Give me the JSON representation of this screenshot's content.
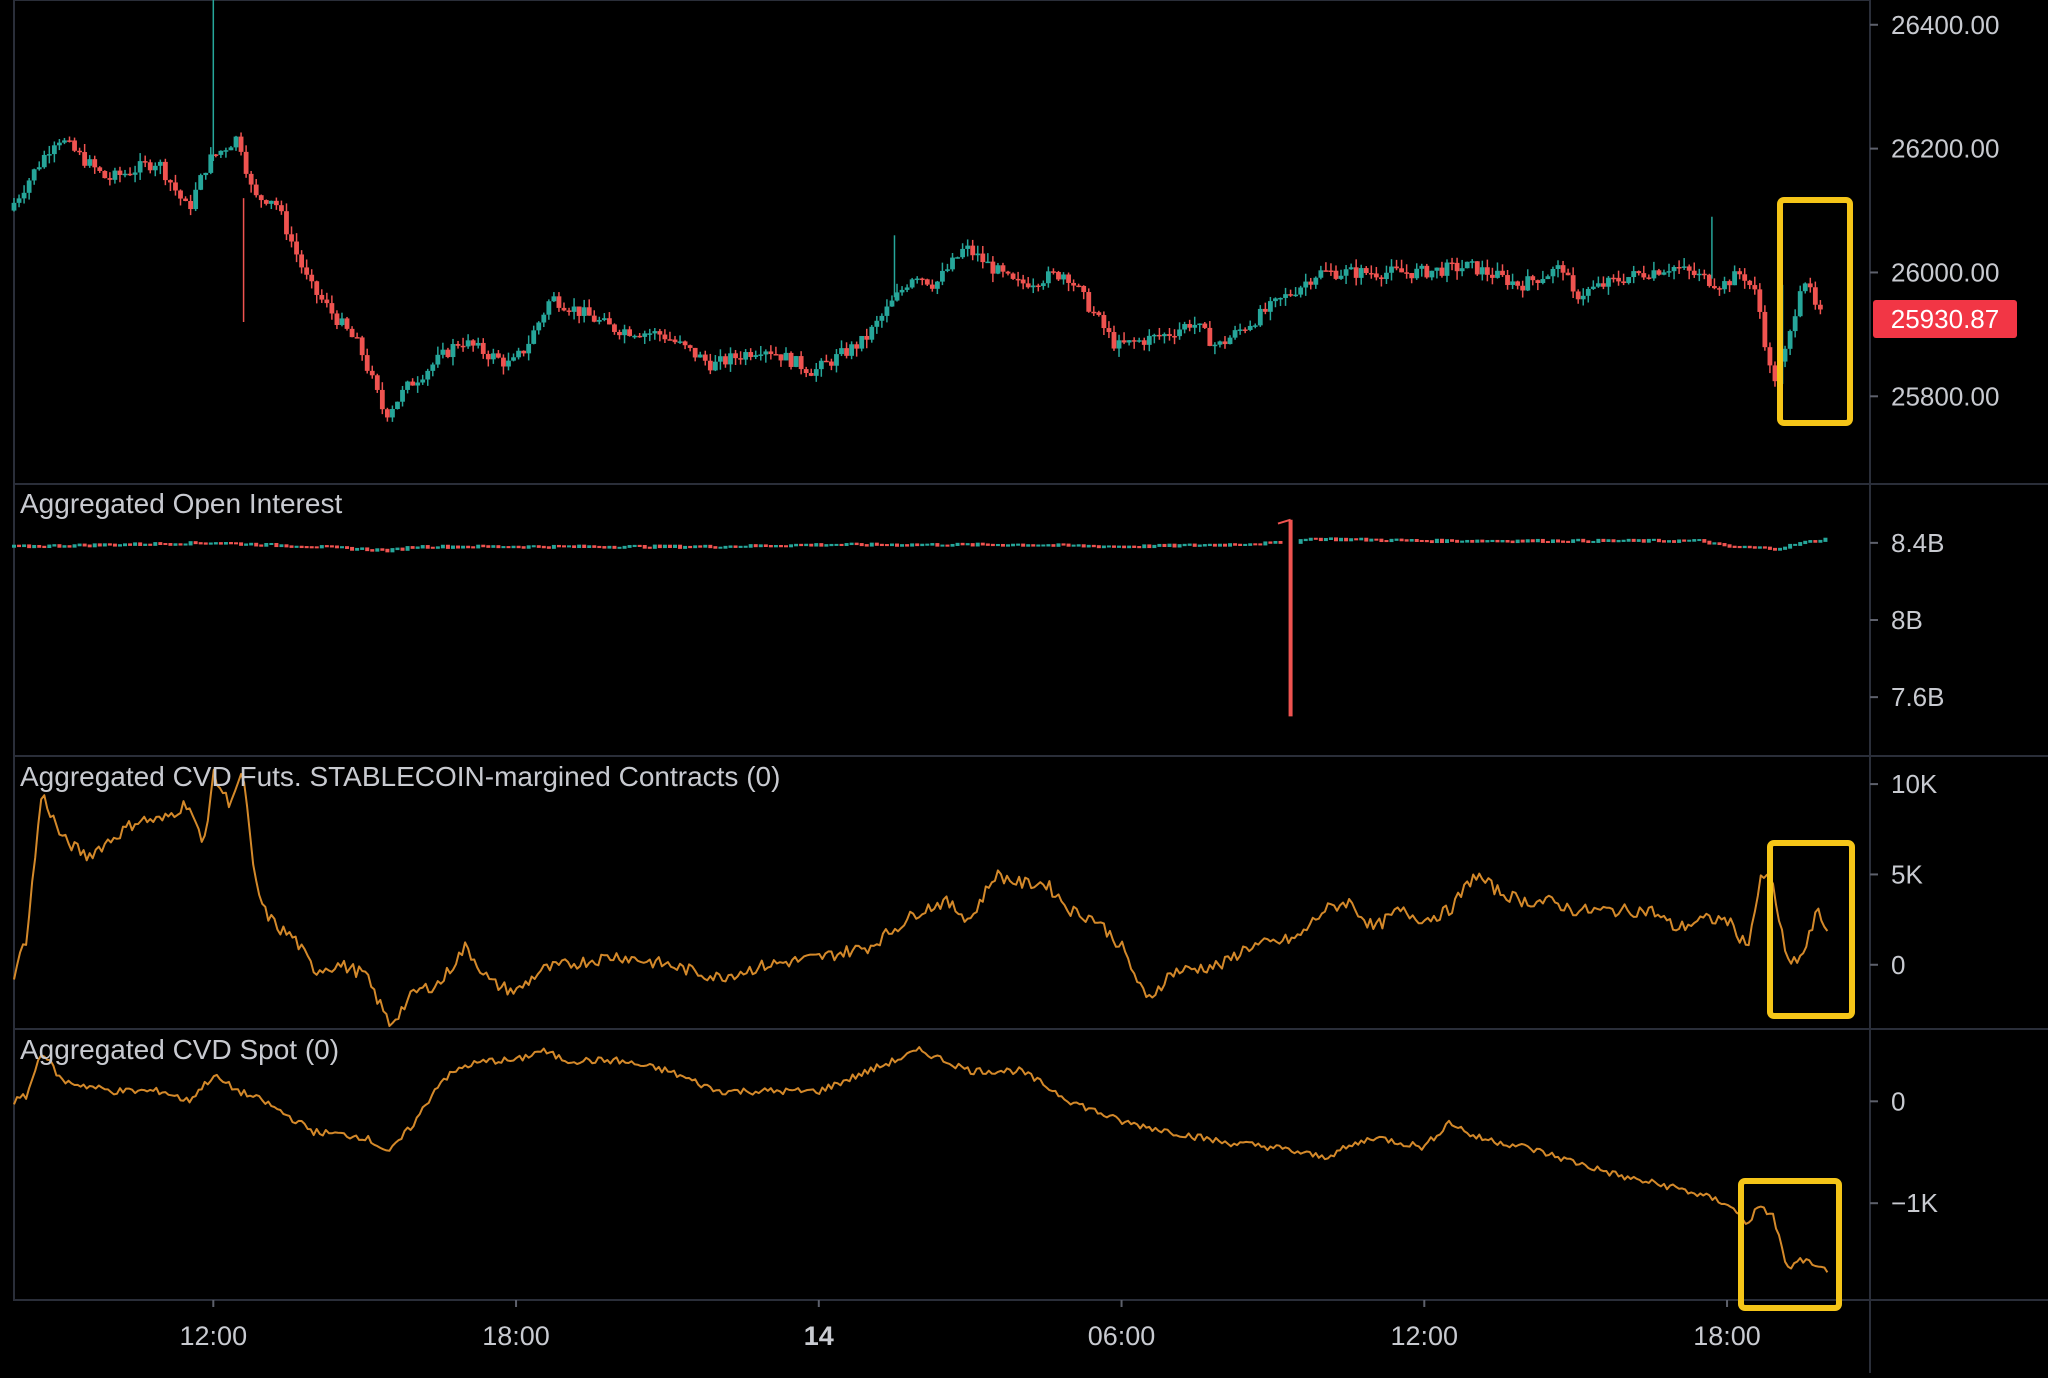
{
  "colors": {
    "background": "#000000",
    "up": "#26a69a",
    "down": "#ef5350",
    "cvd_line": "#d4892a",
    "highlight_box": "#f5c518",
    "price_badge": "#f23645",
    "grid_border": "#2a2e39"
  },
  "x_axis": {
    "tick_labels": [
      "12:00",
      "18:00",
      "14",
      "06:00",
      "12:00",
      "18:00"
    ],
    "tick_hours": [
      12,
      18,
      24,
      30,
      36,
      42
    ],
    "range_hours": [
      8.05,
      44.1
    ]
  },
  "panes": {
    "price": {
      "y_ticks": [
        "26400.00",
        "26200.00",
        "26000.00",
        "25800.00"
      ],
      "current_price": "25930.87",
      "ylim": [
        25660,
        26440
      ]
    },
    "oi": {
      "title": "Aggregated Open Interest",
      "y_ticks": [
        "8.4B",
        "8B",
        "7.6B"
      ],
      "ylim": [
        7.3,
        8.7
      ]
    },
    "cvd_futs": {
      "title": "Aggregated CVD Futs. STABLECOIN-margined Contracts (0)",
      "y_ticks": [
        "10K",
        "5K",
        "0"
      ],
      "ylim": [
        -3500,
        11500
      ]
    },
    "cvd_spot": {
      "title": "Aggregated CVD Spot (0)",
      "y_ticks": [
        "0",
        "−1K"
      ],
      "ylim": [
        -1950,
        700
      ]
    }
  },
  "chart_data": [
    {
      "type": "candlestick",
      "pane": "price",
      "x_unit": "hours",
      "y_ticks": [
        26400,
        26200,
        26000,
        25800
      ],
      "last_value": 25930.87,
      "series": [
        {
          "x": [
            8.05,
            9,
            10,
            11,
            11.6,
            12,
            12.6,
            12.9,
            13.3,
            14,
            15,
            15.5,
            16,
            17,
            18,
            18.3,
            18.8,
            20,
            21,
            22,
            23,
            24,
            25,
            26,
            26.4,
            27,
            28,
            29,
            30,
            31,
            31.5,
            32,
            33,
            34,
            35,
            36,
            37,
            38,
            38.9,
            39,
            40,
            41,
            42,
            42.4,
            42.7,
            43,
            43.3,
            43.6,
            43.9
          ],
          "values": [
            26100,
            26220,
            26150,
            26180,
            26100,
            26180,
            26220,
            26120,
            26120,
            25980,
            25880,
            25770,
            25820,
            25890,
            25850,
            25880,
            25960,
            25910,
            25900,
            25850,
            25880,
            25840,
            25890,
            26000,
            25980,
            26040,
            25980,
            26000,
            25880,
            25900,
            25920,
            25880,
            25940,
            26000,
            26000,
            26000,
            26010,
            25980,
            26010,
            25960,
            25990,
            26010,
            25980,
            26000,
            25960,
            25820,
            25880,
            26000,
            25930.87
          ]
        }
      ]
    },
    {
      "type": "line",
      "pane": "oi",
      "title": "Aggregated Open Interest",
      "x_unit": "hours",
      "y_ticks": [
        8.4,
        8.0,
        7.6
      ],
      "series": [
        {
          "x": [
            8.05,
            10,
            12,
            13,
            14,
            15.5,
            16,
            18,
            20,
            22,
            24,
            26,
            28,
            30,
            32,
            33.2,
            33.35,
            33.4,
            33.45,
            34,
            36,
            38,
            40,
            41.5,
            42,
            43,
            43.5,
            44
          ],
          "values": [
            8.38,
            8.39,
            8.4,
            8.39,
            8.38,
            8.36,
            8.38,
            8.38,
            8.38,
            8.38,
            8.39,
            8.39,
            8.39,
            8.38,
            8.39,
            8.4,
            8.52,
            7.5,
            8.42,
            8.42,
            8.41,
            8.41,
            8.41,
            8.41,
            8.38,
            8.37,
            8.4,
            8.42
          ]
        }
      ]
    },
    {
      "type": "line",
      "pane": "cvd_futs",
      "title": "Aggregated CVD Futs. STABLECOIN-margined Contracts (0)",
      "x_unit": "hours",
      "y_ticks": [
        10000,
        5000,
        0
      ],
      "series": [
        {
          "x": [
            8.05,
            8.3,
            8.6,
            9,
            9.5,
            10,
            10.5,
            11,
            11.5,
            11.8,
            12,
            12.3,
            12.6,
            12.8,
            13,
            13.3,
            13.6,
            14,
            14.5,
            15,
            15.5,
            16,
            16.5,
            17,
            17.5,
            18,
            18.5,
            19,
            20,
            21,
            22,
            23,
            24,
            25,
            26,
            26.5,
            27,
            27.5,
            28,
            28.5,
            29,
            29.5,
            30,
            30.5,
            31,
            32,
            32.5,
            33,
            33.5,
            34,
            34.5,
            35,
            35.5,
            36,
            36.5,
            37,
            37.5,
            38,
            38.5,
            39,
            40,
            40.5,
            41,
            41.5,
            42,
            42.4,
            42.7,
            42.9,
            43.2,
            43.5,
            43.8,
            44
          ],
          "values": [
            -500,
            1500,
            9500,
            7000,
            6000,
            7000,
            8000,
            8000,
            9000,
            6500,
            10500,
            9000,
            10500,
            5000,
            3000,
            2000,
            1500,
            -300,
            0,
            -500,
            -3300,
            -1500,
            -1000,
            1000,
            -1000,
            -1500,
            -300,
            0,
            500,
            0,
            -700,
            0,
            400,
            1000,
            3000,
            3500,
            2500,
            5000,
            4500,
            4500,
            3000,
            2500,
            1000,
            -2000,
            -400,
            0,
            1000,
            1200,
            1500,
            3000,
            3500,
            2000,
            3000,
            2500,
            3000,
            5000,
            4000,
            3500,
            3500,
            3000,
            3000,
            3000,
            2000,
            2500,
            2500,
            1000,
            5000,
            4500,
            0,
            500,
            3000,
            1800
          ]
        }
      ]
    },
    {
      "type": "line",
      "pane": "cvd_spot",
      "title": "Aggregated CVD Spot (0)",
      "x_unit": "hours",
      "y_ticks": [
        0,
        -1000
      ],
      "series": [
        {
          "x": [
            8.05,
            8.3,
            8.6,
            9,
            10,
            11,
            11.5,
            12,
            12.5,
            13,
            14,
            15,
            15.5,
            16,
            16.5,
            17,
            17.5,
            18,
            18.5,
            19,
            20,
            21,
            22,
            23,
            24,
            25,
            26,
            27,
            28,
            29,
            30,
            31,
            32,
            33,
            34,
            34.5,
            35,
            36,
            36.5,
            37,
            38,
            39,
            40,
            41,
            42,
            42.4,
            42.6,
            42.9,
            43.2,
            43.5,
            43.8,
            44
          ],
          "values": [
            0,
            50,
            500,
            200,
            100,
            100,
            0,
            250,
            100,
            0,
            -300,
            -350,
            -500,
            -200,
            200,
            350,
            400,
            400,
            500,
            400,
            400,
            300,
            100,
            100,
            100,
            300,
            500,
            300,
            300,
            0,
            -200,
            -300,
            -400,
            -450,
            -550,
            -450,
            -350,
            -450,
            -200,
            -350,
            -450,
            -600,
            -750,
            -850,
            -1000,
            -1200,
            -1050,
            -1100,
            -1650,
            -1550,
            -1650,
            -1650
          ]
        }
      ]
    }
  ]
}
